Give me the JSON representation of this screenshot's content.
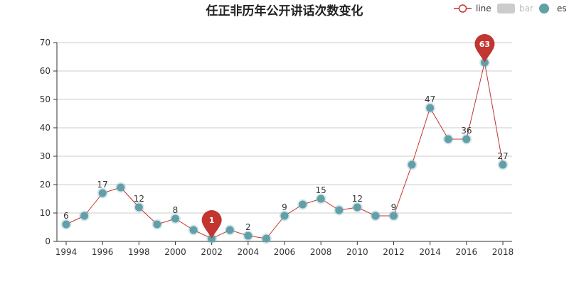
{
  "chart_data": {
    "type": "line",
    "title": "任正非历年公开讲话次数变化",
    "xlabel": "",
    "ylabel": "",
    "ylim": [
      0,
      70
    ],
    "xlim": [
      1994,
      2018
    ],
    "y_ticks": [
      0,
      10,
      20,
      30,
      40,
      50,
      60,
      70
    ],
    "x_ticks": [
      1994,
      1996,
      1998,
      2000,
      2002,
      2004,
      2006,
      2008,
      2010,
      2012,
      2014,
      2016,
      2018
    ],
    "grid": true,
    "legend_position": "top-right",
    "legend": [
      {
        "label": "line",
        "kind": "line"
      },
      {
        "label": "bar",
        "kind": "bar"
      },
      {
        "label": "es",
        "kind": "scatter"
      }
    ],
    "x": [
      1994,
      1995,
      1996,
      1997,
      1998,
      1999,
      2000,
      2001,
      2002,
      2003,
      2004,
      2005,
      2006,
      2007,
      2008,
      2009,
      2010,
      2011,
      2012,
      2013,
      2014,
      2015,
      2016,
      2017,
      2018
    ],
    "series": [
      {
        "name": "line",
        "values": [
          6,
          9,
          17,
          19,
          12,
          6,
          8,
          4,
          1,
          4,
          2,
          1,
          9,
          13,
          15,
          11,
          12,
          9,
          9,
          27,
          47,
          36,
          36,
          63,
          27
        ]
      }
    ],
    "point_labels": [
      {
        "x": 1994,
        "text": "6"
      },
      {
        "x": 1996,
        "text": "17"
      },
      {
        "x": 1998,
        "text": "12"
      },
      {
        "x": 2000,
        "text": "8"
      },
      {
        "x": 2004,
        "text": "2"
      },
      {
        "x": 2006,
        "text": "9"
      },
      {
        "x": 2008,
        "text": "15"
      },
      {
        "x": 2010,
        "text": "12"
      },
      {
        "x": 2012,
        "text": "9"
      },
      {
        "x": 2014,
        "text": "47"
      },
      {
        "x": 2016,
        "text": "36"
      },
      {
        "x": 2018,
        "text": "27"
      }
    ],
    "markers": [
      {
        "type": "min",
        "x": 2002,
        "value": 1,
        "text": "1"
      },
      {
        "type": "max",
        "x": 2017,
        "value": 63,
        "text": "63"
      }
    ],
    "colors": {
      "line": "#c23531",
      "point": "#61a0a8",
      "marker": "#c23531",
      "bar_legend": "#cccccc",
      "grid": "#cccccc",
      "axis": "#333333"
    }
  }
}
